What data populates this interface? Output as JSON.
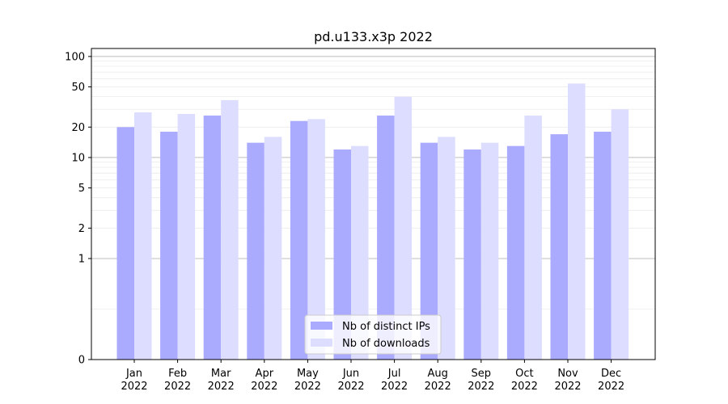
{
  "chart_data": {
    "type": "bar",
    "title": "pd.u133.x3p 2022",
    "xlabel": "",
    "ylabel": "",
    "categories": [
      [
        "Jan",
        "2022"
      ],
      [
        "Feb",
        "2022"
      ],
      [
        "Mar",
        "2022"
      ],
      [
        "Apr",
        "2022"
      ],
      [
        "May",
        "2022"
      ],
      [
        "Jun",
        "2022"
      ],
      [
        "Jul",
        "2022"
      ],
      [
        "Aug",
        "2022"
      ],
      [
        "Sep",
        "2022"
      ],
      [
        "Oct",
        "2022"
      ],
      [
        "Nov",
        "2022"
      ],
      [
        "Dec",
        "2022"
      ]
    ],
    "series": [
      {
        "name": "Nb of distinct IPs",
        "color": "#aaaaff",
        "values": [
          20,
          18,
          26,
          14,
          23,
          12,
          26,
          14,
          12,
          13,
          17,
          18
        ]
      },
      {
        "name": "Nb of downloads",
        "color": "#ddddff",
        "values": [
          28,
          27,
          37,
          16,
          24,
          13,
          40,
          16,
          14,
          26,
          54,
          30
        ]
      }
    ],
    "yscale": "symlog",
    "ylim": [
      0,
      120
    ],
    "yticks": [
      0,
      1,
      2,
      5,
      10,
      20,
      50,
      100
    ],
    "ytick_labels": [
      "0",
      "1",
      "2",
      "5",
      "10",
      "20",
      "50",
      "100"
    ],
    "grid": true,
    "legend_position": "bottom-center"
  }
}
